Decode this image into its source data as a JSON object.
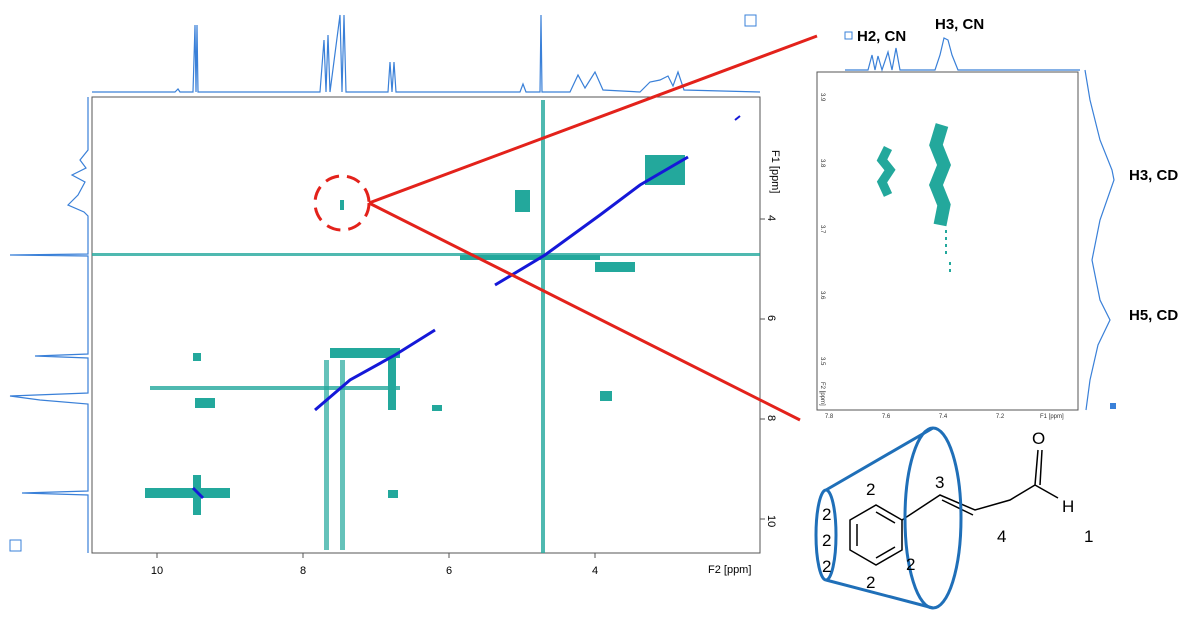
{
  "main_spectrum": {
    "x_label": "F2 [ppm]",
    "y_label": "F1 [ppm]",
    "x_ticks": [
      "10",
      "8",
      "6",
      "4"
    ],
    "y_ticks": [
      "4",
      "6",
      "8",
      "10"
    ]
  },
  "inset": {
    "x_label": "F1 [ppm]",
    "y_label": "F2 [ppm]",
    "x_ticks": [
      "7.8",
      "7.6",
      "7.4",
      "7.2"
    ],
    "y_ticks": [
      "3.9",
      "3.8",
      "3.7",
      "3.6",
      "3.5"
    ]
  },
  "annotations": [
    "H2, CN",
    "H3, CN",
    "H3, CD",
    "H5, CD"
  ],
  "molecule": {
    "carbon_labels": [
      "2",
      "2",
      "2",
      "2",
      "2",
      "2",
      "3",
      "4",
      "1"
    ],
    "oxygen": "O",
    "hydrogen": "H"
  }
}
